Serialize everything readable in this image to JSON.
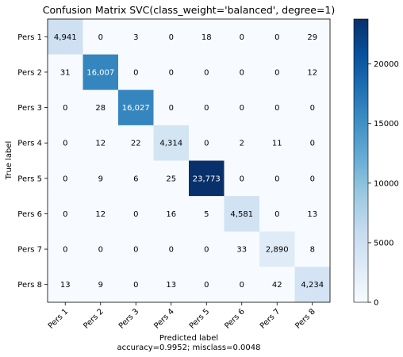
{
  "chart_data": {
    "type": "heatmap",
    "title": "Confusion Matrix SVC(class_weight='balanced', degree=1)",
    "xlabel": "Predicted label",
    "xlabel_note": "accuracy=0.9952; misclass=0.0048",
    "ylabel": "True label",
    "x_categories": [
      "Pers 1",
      "Pers 2",
      "Pers 3",
      "Pers 4",
      "Pers 5",
      "Pers 6",
      "Pers 7",
      "Pers 8"
    ],
    "y_categories": [
      "Pers 1",
      "Pers 2",
      "Pers 3",
      "Pers 4",
      "Pers 5",
      "Pers 6",
      "Pers 7",
      "Pers 8"
    ],
    "values": [
      [
        4941,
        0,
        3,
        0,
        18,
        0,
        0,
        29
      ],
      [
        31,
        16007,
        0,
        0,
        0,
        0,
        0,
        12
      ],
      [
        0,
        28,
        16027,
        0,
        0,
        0,
        0,
        0
      ],
      [
        0,
        12,
        22,
        4314,
        0,
        2,
        11,
        0
      ],
      [
        0,
        9,
        6,
        25,
        23773,
        0,
        0,
        0
      ],
      [
        0,
        12,
        0,
        16,
        5,
        4581,
        0,
        13
      ],
      [
        0,
        0,
        0,
        0,
        0,
        33,
        2890,
        8
      ],
      [
        13,
        9,
        0,
        13,
        0,
        0,
        42,
        4234
      ]
    ],
    "colormap": "Blues",
    "colormap_stops": [
      "#f7fbff",
      "#deebf7",
      "#c6dbef",
      "#9ecae1",
      "#6baed6",
      "#4292c6",
      "#2171b5",
      "#08519c",
      "#08306b"
    ],
    "colorbar": {
      "range": [
        0,
        23773
      ],
      "ticks": [
        0,
        5000,
        10000,
        15000,
        20000
      ]
    },
    "text_color_dark": "#000000",
    "text_color_light": "#ffffff",
    "grid": false
  }
}
